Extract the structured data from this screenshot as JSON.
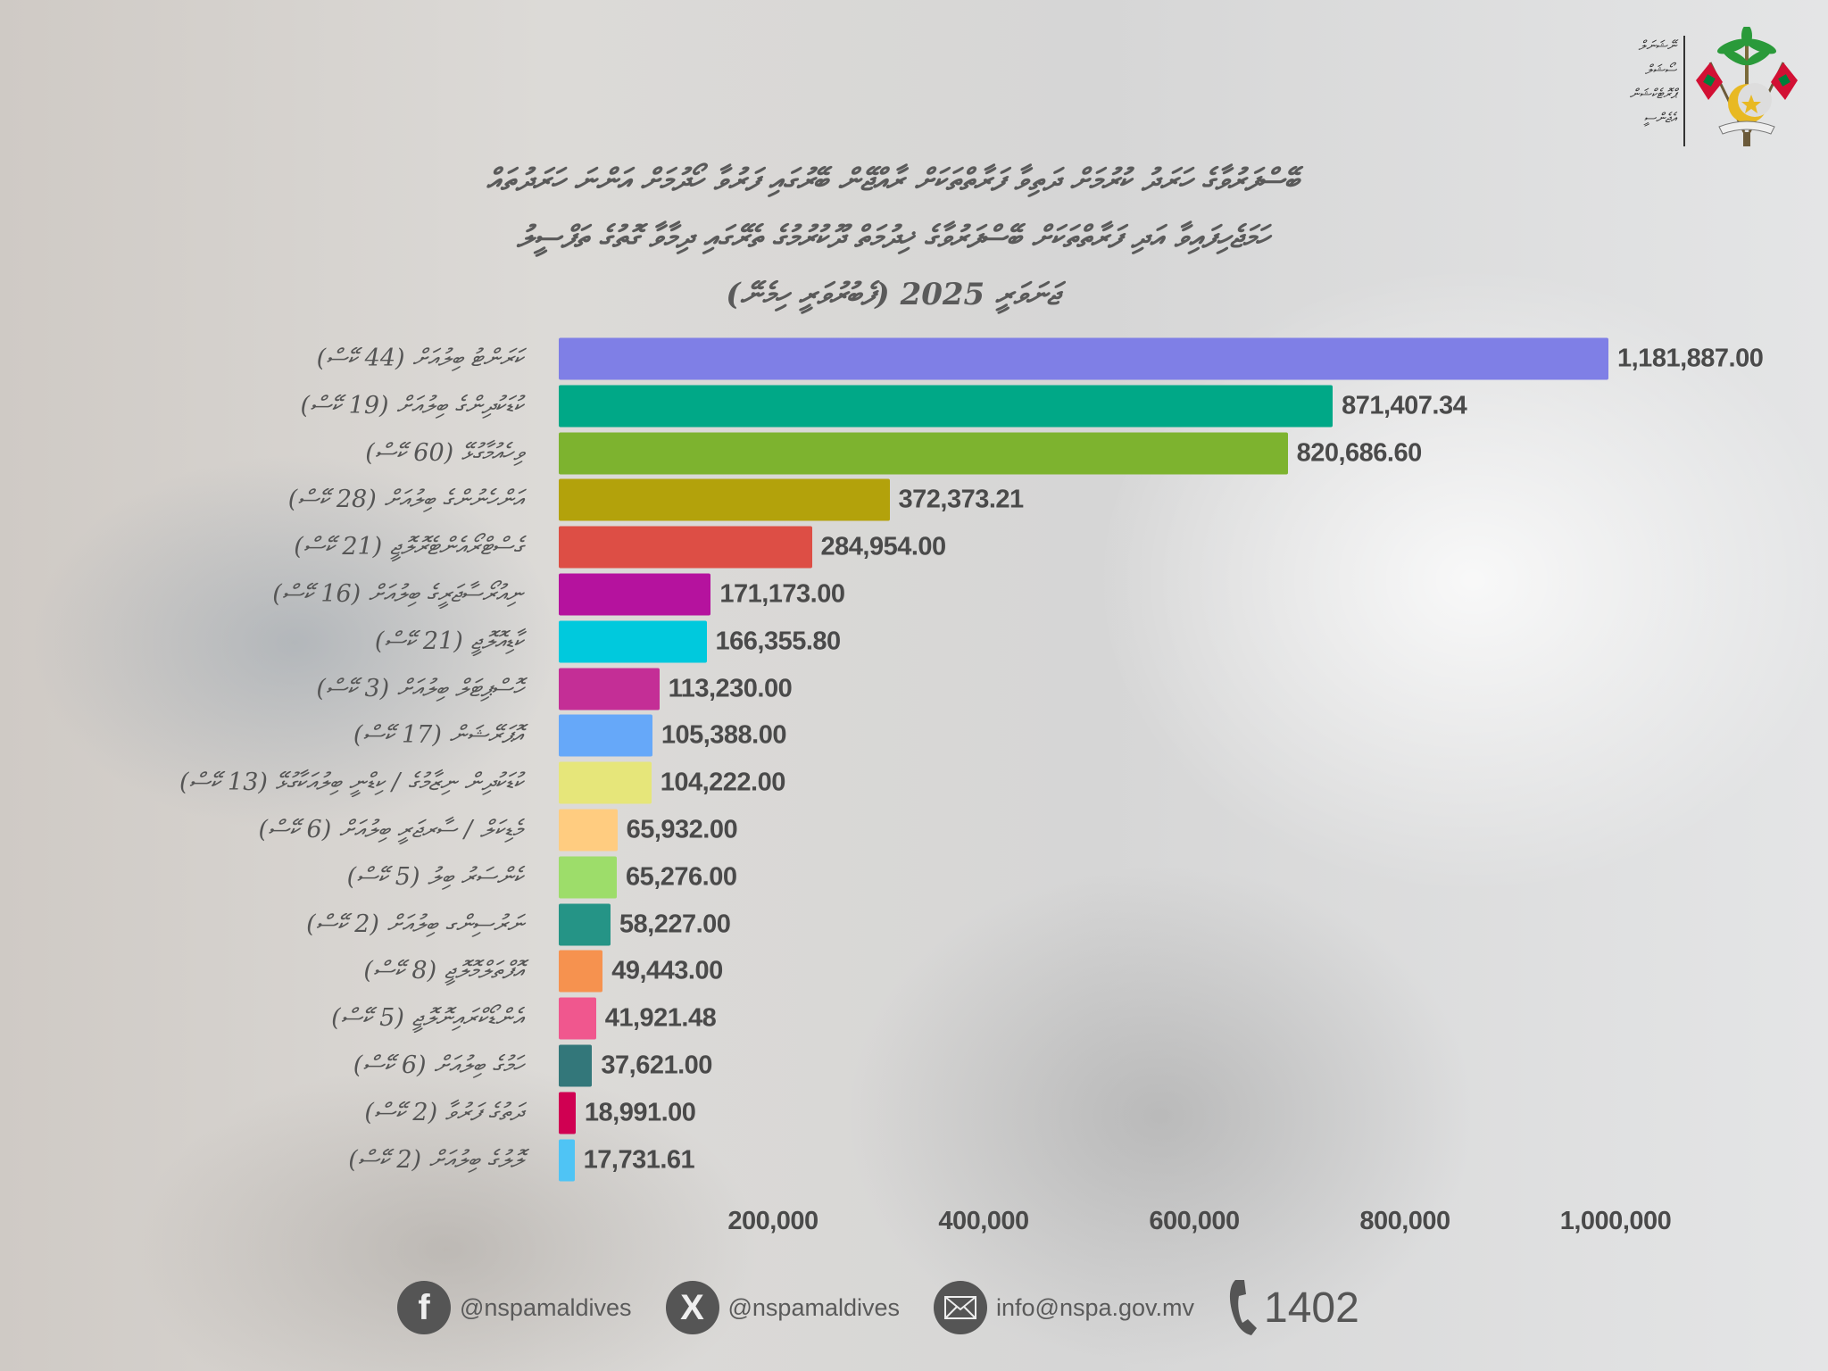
{
  "header": {
    "logo_text_lines": [
      "ނޭޝަނަލް",
      "ސޯޝަލް",
      "ޕްރޮޓެކްޝަން",
      "އެޖެންސީ"
    ],
    "emblem": "maldives-state-emblem"
  },
  "chart_data": {
    "type": "bar",
    "orientation": "horizontal",
    "title_lines": [
      "ބޭސްފަރުވާގެ ހަރަދު ކުރުމަށް ދަތިވާ ފަރާތްތަކަށް ރާއްޖޭން ބޭރުގައި ފަރުވާ ހޯދުމަށް އަންނަ ހަރަދުތައް",
      "ހަމަޖެހިފައިވާ އަދި ފަރާތްތަކަށް ބޭސްފަރުވާގެ ޚިދުމަތް ދޫކުރުމުގެ ތެރޭގައި ދިމާވާ ގޮތުގެ ތަފްސީލު",
      "ޖަނަވަރީ 2025 (ފެބުރުވަރީ ހިމެނޭ)"
    ],
    "categories": [
      "ކަރަންޓު ބިލުއަށް (44 ކޭސް)",
      "ކުޑަކުދިންގެ ބިލުއަށް (19 ކޭސް)",
      "ވިހެއުމާގުޅޭ (60 ކޭސް)",
      "އަންހެނުންގެ ބިލުއަށް (28 ކޭސް)",
      "ގެސްޓްރޯއެންޓެރޮލޮޖީ (21 ކޭސް)",
      "ނިއުރޯސާޖަރީގެ ބިލުއަށް (16 ކޭސް)",
      "ކާޑިއޮލޮޖީ (21 ކޭސް)",
      "ހޮސްޕިޓަލް ބިލުއަށް (3 ކޭސް)",
      "އޮޕަރޭޝަން (17 ކޭސް)",
      "ކުޑަކުދިން ނިޒާމުގެ / ކިޑްނީ ބިލުއަކާގުޅޭ (13 ކޭސް)",
      "މެޑިކަލް / ސާރޖަރީ ބިލުއަށް (6 ކޭސް)",
      "ކެންސަރު ބިލު (5 ކޭސް)",
      "ނަރުސިންގ ބިލުއަށް (2 ކޭސް)",
      "އޮފްތަލްމޮލޮޖީ (8 ކޭސް)",
      "އެންޑޯކްރައިނޮލޮޖީ (5 ކޭސް)",
      "ހަމުގެ ބިލުއަށް (6 ކޭސް)",
      "ދަތުގެ ފަރުވާ (2 ކޭސް)",
      "ލޮލުގެ ބިލުއަށް (2 ކޭސް)"
    ],
    "values": [
      1181887.0,
      871407.34,
      820686.6,
      372373.21,
      284954.0,
      171173.0,
      166355.8,
      113230.0,
      105388.0,
      104222.0,
      65932.0,
      65276.0,
      58227.0,
      49443.0,
      41921.48,
      37621.0,
      18991.0,
      17731.61
    ],
    "value_labels": [
      "1,181,887.00",
      "871,407.34",
      "820,686.60",
      "372,373.21",
      "284,954.00",
      "171,173.00",
      "166,355.80",
      "113,230.00",
      "105,388.00",
      "104,222.00",
      "65,932.00",
      "65,276.00",
      "58,227.00",
      "49,443.00",
      "41,921.48",
      "37,621.00",
      "18,991.00",
      "17,731.61"
    ],
    "colors": [
      "#7f7fe6",
      "#00a887",
      "#7db32f",
      "#b3a20b",
      "#dd4e45",
      "#b5129e",
      "#00c9dd",
      "#c42e96",
      "#66a8f9",
      "#e6e67a",
      "#ffcc80",
      "#9ddd6a",
      "#259486",
      "#f6924f",
      "#f0578e",
      "#33777a",
      "#d00052",
      "#4fc4f5"
    ],
    "x_ticks": [
      200000,
      400000,
      600000,
      800000,
      1000000
    ],
    "x_tick_labels": [
      "200,000",
      "400,000",
      "600,000",
      "800,000",
      "1,000,000"
    ],
    "xlim": [
      0,
      1200000
    ],
    "grid": false,
    "legend": "none"
  },
  "footer": {
    "facebook": "@nspamaldives",
    "x": "@nspamaldives",
    "email": "info@nspa.gov.mv",
    "phone": "1402"
  }
}
